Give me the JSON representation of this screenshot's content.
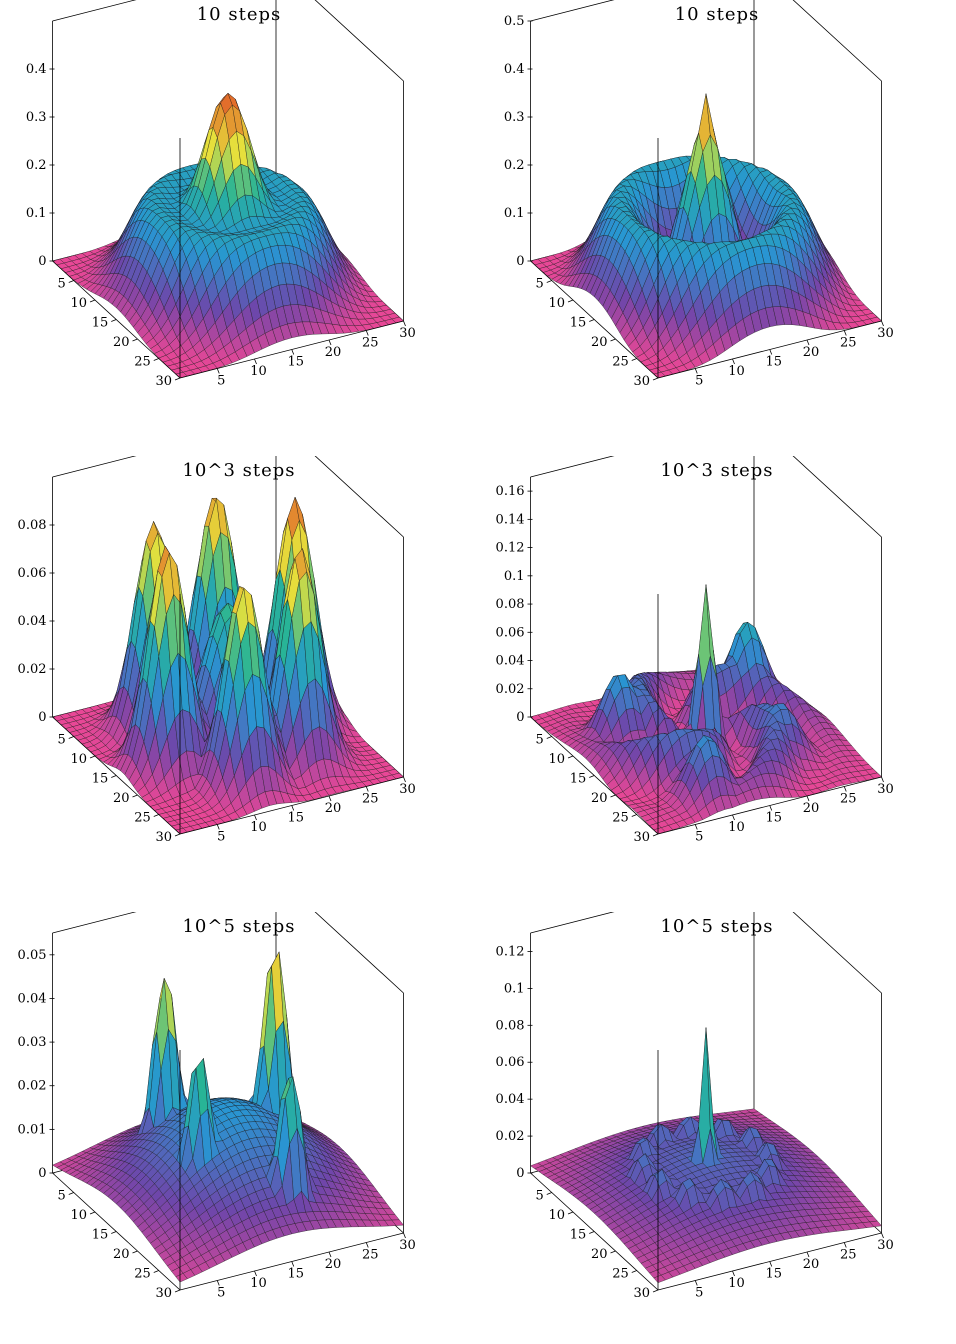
{
  "chart_data": [
    {
      "type": "surface3d",
      "title": "10 steps",
      "grid_size": 31,
      "x_ticks": [
        5,
        10,
        15,
        20,
        25,
        30
      ],
      "y_ticks": [
        5,
        10,
        15,
        20,
        25,
        30
      ],
      "z_ticks": [
        "0",
        "0.1",
        "0.2",
        "0.3",
        "0.4"
      ],
      "zlim": [
        0,
        0.5
      ],
      "peak_z": 0.41,
      "profile": "smooth central peak with surrounding ring",
      "colormap": "magenta-blue-green-yellow-orange"
    },
    {
      "type": "surface3d",
      "title": "10 steps",
      "grid_size": 31,
      "x_ticks": [
        5,
        10,
        15,
        20,
        25,
        30
      ],
      "y_ticks": [
        5,
        10,
        15,
        20,
        25,
        30
      ],
      "z_ticks": [
        "0",
        "0.1",
        "0.2",
        "0.3",
        "0.4",
        "0.5"
      ],
      "zlim": [
        0,
        0.5
      ],
      "peak_z": 0.41,
      "profile": "sharp central spike with surrounding ring",
      "colormap": "magenta-blue-green-yellow-orange"
    },
    {
      "type": "surface3d",
      "title": "10^3 steps",
      "grid_size": 31,
      "x_ticks": [
        5,
        10,
        15,
        20,
        25,
        30
      ],
      "y_ticks": [
        5,
        10,
        15,
        20,
        25,
        30
      ],
      "z_ticks": [
        "0",
        "0.02",
        "0.04",
        "0.06",
        "0.08"
      ],
      "zlim": [
        0,
        0.1
      ],
      "peak_z": 0.097,
      "profile": "multiple smooth peaks on a ring",
      "colormap": "magenta-blue-green-yellow-orange"
    },
    {
      "type": "surface3d",
      "title": "10^3 steps",
      "grid_size": 31,
      "x_ticks": [
        5,
        10,
        15,
        20,
        25,
        30
      ],
      "y_ticks": [
        5,
        10,
        15,
        20,
        25,
        30
      ],
      "z_ticks": [
        "0",
        "0.02",
        "0.04",
        "0.06",
        "0.08",
        "0.1",
        "0.12",
        "0.14",
        "0.16"
      ],
      "zlim": [
        0,
        0.17
      ],
      "peak_z": 0.115,
      "profile": "central spike with low scattered bumps",
      "colormap": "magenta-blue-green-yellow-orange"
    },
    {
      "type": "surface3d",
      "title": "10^5 steps",
      "grid_size": 31,
      "x_ticks": [
        5,
        10,
        15,
        20,
        25,
        30
      ],
      "y_ticks": [
        5,
        10,
        15,
        20,
        25,
        30
      ],
      "z_ticks": [
        "0",
        "0.01",
        "0.02",
        "0.03",
        "0.04",
        "0.05"
      ],
      "zlim": [
        0,
        0.055
      ],
      "peak_z": 0.055,
      "profile": "dome with several sharp peaks",
      "colormap": "magenta-blue-green-yellow-orange"
    },
    {
      "type": "surface3d",
      "title": "10^5 steps",
      "grid_size": 31,
      "x_ticks": [
        5,
        10,
        15,
        20,
        25,
        30
      ],
      "y_ticks": [
        5,
        10,
        15,
        20,
        25,
        30
      ],
      "z_ticks": [
        "0",
        "0.02",
        "0.04",
        "0.06",
        "0.08",
        "0.1",
        "0.12"
      ],
      "zlim": [
        0,
        0.13
      ],
      "peak_z": 0.095,
      "profile": "central spike with spiky rings",
      "colormap": "magenta-blue-green-yellow-orange"
    }
  ]
}
